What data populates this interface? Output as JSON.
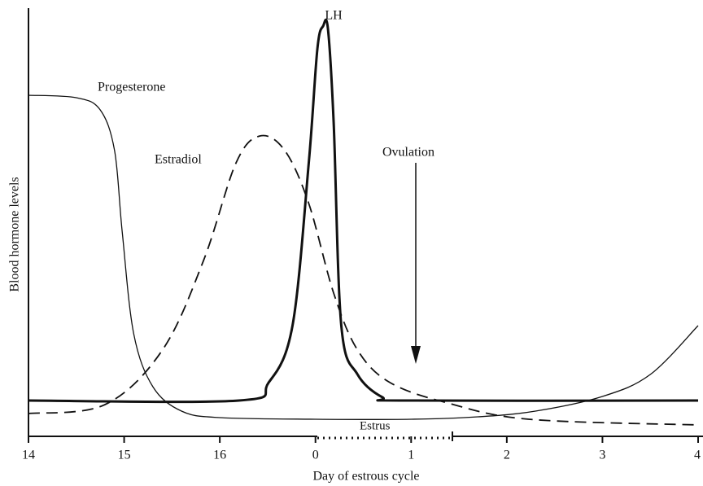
{
  "chart_data": {
    "type": "line",
    "xlabel": "Day of estrous cycle",
    "ylabel": "Blood hormone levels",
    "xlim": [
      0,
      7
    ],
    "ylim": [
      0,
      105
    ],
    "xticks": [
      {
        "value": 0,
        "label": "14"
      },
      {
        "value": 1,
        "label": "15"
      },
      {
        "value": 2,
        "label": "16"
      },
      {
        "value": 3,
        "label": "0"
      },
      {
        "value": 4,
        "label": "1"
      },
      {
        "value": 5,
        "label": "2"
      },
      {
        "value": 6,
        "label": "3"
      },
      {
        "value": 7,
        "label": "4"
      }
    ],
    "grid": false,
    "series": [
      {
        "name": "Progesterone",
        "color": "#111111",
        "width": 1.3,
        "dash": false,
        "x": [
          0,
          0.5,
          0.75,
          0.9,
          0.98,
          1.1,
          1.3,
          1.6,
          2.0,
          3,
          4,
          4.7,
          5.3,
          6,
          6.5,
          7
        ],
        "values": [
          83.6,
          83,
          80,
          70,
          50,
          25,
          12,
          6,
          4.4,
          4,
          4,
          4.6,
          6,
          9.6,
          15,
          27
        ]
      },
      {
        "name": "Estradiol",
        "color": "#111111",
        "width": 1.8,
        "dash": true,
        "x": [
          0,
          0.8,
          1.4,
          1.83,
          2.17,
          2.42,
          2.68,
          2.93,
          3.19,
          3.44,
          3.78,
          4.38,
          5.23,
          7
        ],
        "values": [
          5.4,
          7.6,
          21,
          43,
          67,
          73.6,
          70,
          57,
          35,
          21,
          13,
          8,
          4,
          2.6
        ]
      },
      {
        "name": "LH",
        "color": "#111111",
        "width": 3,
        "dash": false,
        "x": [
          0,
          2.2,
          2.51,
          2.76,
          2.93,
          3.02,
          3.08,
          3.13,
          3.19,
          3.27,
          3.44,
          3.7,
          3.95,
          7
        ],
        "values": [
          8.6,
          8.6,
          13,
          27,
          67,
          95,
          100.6,
          100,
          77,
          27,
          15,
          9.4,
          8.6,
          8.6
        ]
      }
    ],
    "annotations": [
      "Ovulation",
      "Estrus"
    ]
  }
}
